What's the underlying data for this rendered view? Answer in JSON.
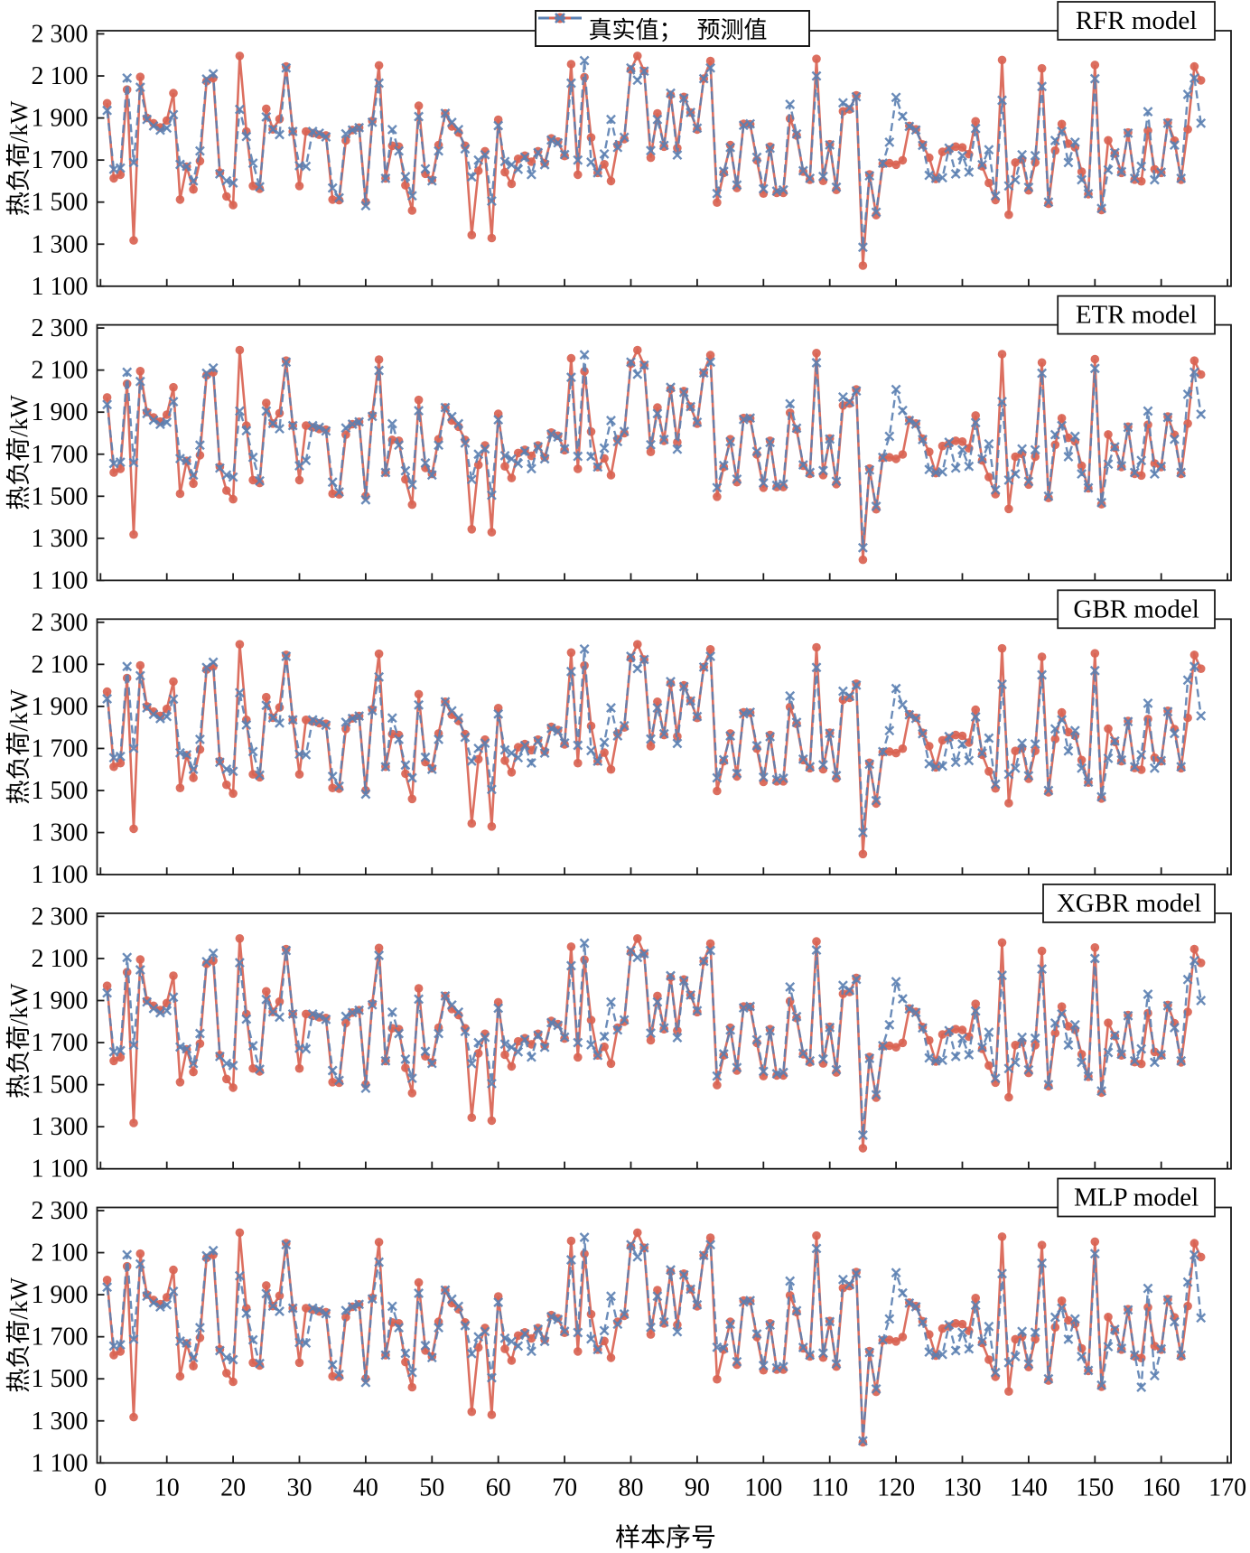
{
  "legend": {
    "actual_label": "真实值；",
    "predicted_label": "预测值"
  },
  "axes": {
    "ylabel": "热负荷/kW",
    "xlabel": "样本序号",
    "ytick_labels": [
      "2 300",
      "2 100",
      "1 900",
      "1 700",
      "1 500",
      "1 300",
      "1 100"
    ],
    "ytick_values": [
      2300,
      2100,
      1900,
      1700,
      1500,
      1300,
      1100
    ],
    "xtick_values": [
      0,
      10,
      20,
      30,
      40,
      50,
      60,
      70,
      80,
      90,
      100,
      110,
      120,
      130,
      140,
      150,
      160,
      170
    ]
  },
  "colors": {
    "actual": "#d96352",
    "predicted": "#5b80b1",
    "frame": "#1a1a1a"
  },
  "chart_data": {
    "type": "line",
    "xlabel": "样本序号",
    "ylabel": "热负荷/kW",
    "xlim": [
      0,
      170
    ],
    "ylim": [
      1100,
      2315
    ],
    "x_start": 1,
    "grid": false,
    "legend_position": "top-center",
    "series_labels": {
      "actual": "真实值",
      "predicted": "预测值"
    },
    "actual": [
      1970,
      1613,
      1630,
      2035,
      1318,
      2095,
      1900,
      1875,
      1855,
      1888,
      2018,
      1512,
      1668,
      1560,
      1695,
      2075,
      2090,
      1640,
      1527,
      1486,
      2195,
      1836,
      1577,
      1563,
      1944,
      1846,
      1895,
      2145,
      1836,
      1577,
      1836,
      1828,
      1820,
      1817,
      1512,
      1509,
      1793,
      1843,
      1854,
      1501,
      1886,
      2150,
      1613,
      1768,
      1764,
      1580,
      1460,
      1958,
      1635,
      1606,
      1771,
      1922,
      1860,
      1831,
      1768,
      1343,
      1649,
      1742,
      1329,
      1892,
      1642,
      1587,
      1706,
      1721,
      1692,
      1742,
      1685,
      1803,
      1788,
      1719,
      2156,
      1630,
      2094,
      1807,
      1639,
      1680,
      1600,
      1771,
      1800,
      2130,
      2195,
      2123,
      1711,
      1922,
      1764,
      2010,
      1757,
      2000,
      1926,
      1845,
      2087,
      2171,
      1498,
      1639,
      1771,
      1567,
      1872,
      1870,
      1699,
      1541,
      1764,
      1544,
      1544,
      1897,
      1817,
      1645,
      1606,
      2181,
      1601,
      1775,
      1558,
      1932,
      1941,
      2008,
      1198,
      1632,
      1438,
      1682,
      1685,
      1678,
      1699,
      1862,
      1846,
      1774,
      1711,
      1610,
      1739,
      1749,
      1764,
      1760,
      1728,
      1884,
      1670,
      1591,
      1510,
      2176,
      1440,
      1688,
      1702,
      1556,
      1688,
      2136,
      1492,
      1745,
      1871,
      1778,
      1761,
      1645,
      1538,
      2152,
      1462,
      1794,
      1731,
      1639,
      1831,
      1607,
      1599,
      1840,
      1656,
      1639,
      1879,
      1792,
      1606,
      1846,
      2145,
      2079
    ],
    "models": [
      {
        "name": "RFR model",
        "predicted": [
          1936,
          1656,
          1662,
          2090,
          1688,
          2046,
          1893,
          1862,
          1842,
          1852,
          1916,
          1679,
          1670,
          1601,
          1743,
          2085,
          2110,
          1634,
          1601,
          1591,
          1941,
          1812,
          1685,
          1573,
          1905,
          1846,
          1821,
          2138,
          1836,
          1673,
          1670,
          1836,
          1828,
          1810,
          1567,
          1520,
          1825,
          1843,
          1854,
          1483,
          1880,
          2066,
          1613,
          1845,
          1743,
          1621,
          1530,
          1907,
          1658,
          1601,
          1743,
          1922,
          1879,
          1845,
          1753,
          1620,
          1700,
          1725,
          1505,
          1864,
          1693,
          1678,
          1656,
          1714,
          1631,
          1735,
          1678,
          1795,
          1782,
          1726,
          2066,
          1700,
          2173,
          1690,
          1639,
          1729,
          1893,
          1760,
          1808,
          2138,
          2080,
          2123,
          1745,
          1893,
          1770,
          2018,
          1724,
          1994,
          1926,
          1852,
          2087,
          2138,
          1541,
          1646,
          1760,
          1581,
          1865,
          1872,
          1713,
          1563,
          1756,
          1552,
          1558,
          1965,
          1824,
          1649,
          1613,
          2100,
          1622,
          1772,
          1571,
          1972,
          1948,
          2001,
          1285,
          1625,
          1452,
          1685,
          1785,
          1998,
          1908,
          1860,
          1843,
          1770,
          1627,
          1613,
          1616,
          1757,
          1634,
          1721,
          1642,
          1850,
          1678,
          1749,
          1530,
          1984,
          1577,
          1606,
          1725,
          1570,
          1721,
          2050,
          1500,
          1793,
          1836,
          1688,
          1785,
          1606,
          1540,
          2087,
          1470,
          1653,
          1735,
          1645,
          1828,
          1613,
          1670,
          1930,
          1606,
          1642,
          1875,
          1771,
          1613,
          2012,
          2090,
          1875
        ]
      },
      {
        "name": "ETR model",
        "predicted": [
          1936,
          1656,
          1662,
          2090,
          1660,
          2046,
          1893,
          1862,
          1842,
          1852,
          1950,
          1679,
          1670,
          1601,
          1743,
          2085,
          2110,
          1634,
          1601,
          1591,
          1905,
          1812,
          1685,
          1573,
          1905,
          1846,
          1821,
          2138,
          1836,
          1645,
          1670,
          1836,
          1828,
          1810,
          1567,
          1520,
          1825,
          1843,
          1854,
          1483,
          1880,
          2098,
          1613,
          1845,
          1743,
          1621,
          1555,
          1907,
          1658,
          1601,
          1743,
          1922,
          1879,
          1845,
          1753,
          1580,
          1700,
          1725,
          1505,
          1864,
          1693,
          1678,
          1656,
          1714,
          1631,
          1735,
          1678,
          1795,
          1782,
          1726,
          2066,
          1690,
          2173,
          1690,
          1639,
          1729,
          1860,
          1760,
          1808,
          2138,
          2080,
          2123,
          1745,
          1893,
          1770,
          2018,
          1724,
          1994,
          1926,
          1852,
          2087,
          2138,
          1541,
          1646,
          1760,
          1581,
          1865,
          1872,
          1713,
          1563,
          1756,
          1552,
          1558,
          1940,
          1824,
          1649,
          1613,
          2135,
          1622,
          1772,
          1571,
          1972,
          1948,
          2001,
          1255,
          1625,
          1452,
          1685,
          1785,
          2008,
          1908,
          1860,
          1843,
          1770,
          1627,
          1613,
          1616,
          1757,
          1634,
          1721,
          1642,
          1850,
          1678,
          1749,
          1530,
          1950,
          1577,
          1606,
          1725,
          1570,
          1721,
          2085,
          1500,
          1793,
          1836,
          1688,
          1785,
          1606,
          1540,
          2108,
          1470,
          1653,
          1735,
          1645,
          1828,
          1613,
          1670,
          1905,
          1606,
          1642,
          1875,
          1771,
          1613,
          1985,
          2090,
          1890
        ]
      },
      {
        "name": "GBR model",
        "predicted": [
          1936,
          1656,
          1662,
          2090,
          1700,
          2046,
          1893,
          1862,
          1842,
          1852,
          1935,
          1679,
          1670,
          1601,
          1743,
          2085,
          2110,
          1634,
          1601,
          1591,
          1965,
          1812,
          1685,
          1573,
          1905,
          1846,
          1821,
          2138,
          1836,
          1673,
          1670,
          1836,
          1828,
          1810,
          1567,
          1520,
          1825,
          1843,
          1854,
          1483,
          1880,
          2040,
          1613,
          1845,
          1743,
          1621,
          1560,
          1907,
          1658,
          1601,
          1743,
          1922,
          1879,
          1845,
          1753,
          1640,
          1700,
          1725,
          1505,
          1864,
          1693,
          1678,
          1656,
          1714,
          1631,
          1735,
          1678,
          1795,
          1782,
          1726,
          2066,
          1715,
          2173,
          1690,
          1639,
          1729,
          1893,
          1760,
          1808,
          2138,
          2080,
          2123,
          1745,
          1893,
          1770,
          2018,
          1724,
          1994,
          1926,
          1852,
          2087,
          2138,
          1560,
          1646,
          1760,
          1581,
          1865,
          1872,
          1713,
          1563,
          1756,
          1552,
          1558,
          1950,
          1824,
          1649,
          1613,
          2085,
          1622,
          1772,
          1571,
          1972,
          1948,
          2001,
          1300,
          1625,
          1452,
          1685,
          1785,
          1985,
          1908,
          1860,
          1843,
          1770,
          1627,
          1613,
          1616,
          1757,
          1634,
          1721,
          1642,
          1850,
          1678,
          1749,
          1530,
          2005,
          1577,
          1606,
          1725,
          1570,
          1721,
          2050,
          1500,
          1793,
          1836,
          1688,
          1785,
          1606,
          1540,
          2070,
          1470,
          1653,
          1735,
          1645,
          1828,
          1613,
          1670,
          1915,
          1606,
          1642,
          1875,
          1771,
          1613,
          2025,
          2090,
          1855
        ]
      },
      {
        "name": "XGBR model",
        "predicted": [
          1936,
          1656,
          1662,
          2105,
          1688,
          2046,
          1893,
          1862,
          1842,
          1852,
          1916,
          1679,
          1670,
          1601,
          1743,
          2085,
          2125,
          1634,
          1601,
          1591,
          2080,
          1812,
          1685,
          1573,
          1905,
          1846,
          1821,
          2138,
          1836,
          1673,
          1670,
          1836,
          1828,
          1810,
          1567,
          1520,
          1825,
          1843,
          1854,
          1483,
          1880,
          2115,
          1613,
          1845,
          1743,
          1621,
          1530,
          1907,
          1658,
          1601,
          1743,
          1922,
          1879,
          1845,
          1753,
          1600,
          1700,
          1725,
          1505,
          1864,
          1693,
          1678,
          1656,
          1714,
          1631,
          1735,
          1678,
          1795,
          1782,
          1726,
          2066,
          1700,
          2173,
          1690,
          1639,
          1729,
          1893,
          1760,
          1808,
          2138,
          2105,
          2123,
          1745,
          1893,
          1770,
          2018,
          1724,
          1994,
          1926,
          1852,
          2087,
          2138,
          1541,
          1646,
          1760,
          1581,
          1865,
          1872,
          1713,
          1563,
          1756,
          1552,
          1558,
          1965,
          1824,
          1649,
          1613,
          2140,
          1622,
          1772,
          1571,
          1972,
          1948,
          2001,
          1260,
          1625,
          1452,
          1685,
          1785,
          1990,
          1908,
          1860,
          1843,
          1770,
          1627,
          1613,
          1616,
          1757,
          1634,
          1721,
          1642,
          1850,
          1678,
          1749,
          1530,
          2020,
          1577,
          1606,
          1725,
          1570,
          1721,
          2050,
          1500,
          1793,
          1836,
          1688,
          1785,
          1606,
          1540,
          2100,
          1470,
          1653,
          1735,
          1645,
          1828,
          1613,
          1670,
          1930,
          1606,
          1642,
          1875,
          1771,
          1613,
          2000,
          2090,
          1900
        ]
      },
      {
        "name": "MLP model",
        "predicted": [
          1936,
          1656,
          1662,
          2090,
          1688,
          2046,
          1893,
          1862,
          1842,
          1852,
          1916,
          1679,
          1670,
          1601,
          1743,
          2085,
          2110,
          1634,
          1601,
          1591,
          1990,
          1812,
          1685,
          1573,
          1905,
          1846,
          1821,
          2138,
          1836,
          1673,
          1670,
          1836,
          1828,
          1810,
          1567,
          1520,
          1825,
          1843,
          1854,
          1483,
          1880,
          2055,
          1613,
          1845,
          1743,
          1621,
          1530,
          1907,
          1658,
          1601,
          1743,
          1922,
          1879,
          1845,
          1753,
          1620,
          1700,
          1725,
          1505,
          1864,
          1693,
          1678,
          1656,
          1714,
          1631,
          1735,
          1678,
          1795,
          1782,
          1726,
          2066,
          1720,
          2173,
          1690,
          1639,
          1729,
          1893,
          1760,
          1808,
          2138,
          2080,
          2123,
          1745,
          1893,
          1770,
          2018,
          1724,
          1994,
          1926,
          1852,
          2087,
          2138,
          1650,
          1646,
          1760,
          1581,
          1865,
          1872,
          1713,
          1563,
          1756,
          1552,
          1558,
          1965,
          1824,
          1649,
          1613,
          2120,
          1622,
          1772,
          1571,
          1972,
          1948,
          2001,
          1205,
          1625,
          1452,
          1685,
          1785,
          2005,
          1908,
          1860,
          1843,
          1770,
          1627,
          1613,
          1616,
          1757,
          1634,
          1721,
          1642,
          1850,
          1678,
          1749,
          1530,
          2000,
          1577,
          1606,
          1725,
          1570,
          1721,
          2050,
          1500,
          1793,
          1836,
          1688,
          1785,
          1606,
          1540,
          2095,
          1470,
          1653,
          1735,
          1645,
          1828,
          1613,
          1460,
          1930,
          1515,
          1642,
          1875,
          1771,
          1613,
          1960,
          2090,
          1790
        ]
      }
    ]
  }
}
